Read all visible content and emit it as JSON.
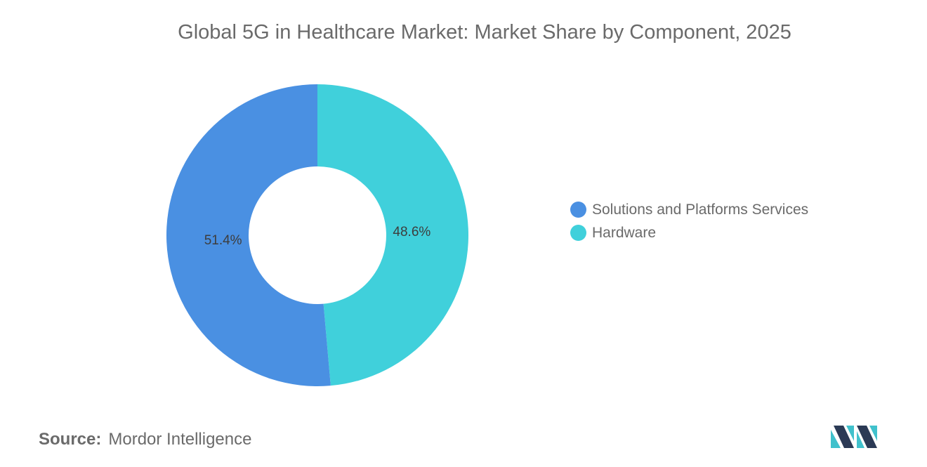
{
  "chart_data": {
    "type": "pie",
    "donut": true,
    "title": "Global 5G in Healthcare Market: Market Share by Component, 2025",
    "slices": [
      {
        "label": "Solutions and Platforms Services",
        "value": 51.4,
        "display": "51.4%",
        "color": "#4a90e2"
      },
      {
        "label": "Hardware",
        "value": 48.6,
        "display": "48.6%",
        "color": "#40d0db"
      }
    ],
    "legend_position": "right"
  },
  "source": {
    "label": "Source:",
    "name": "Mordor Intelligence"
  },
  "logo": {
    "icon": "mordor-intelligence-logo-icon",
    "colors": [
      "#2b3a55",
      "#40c1cc"
    ]
  }
}
